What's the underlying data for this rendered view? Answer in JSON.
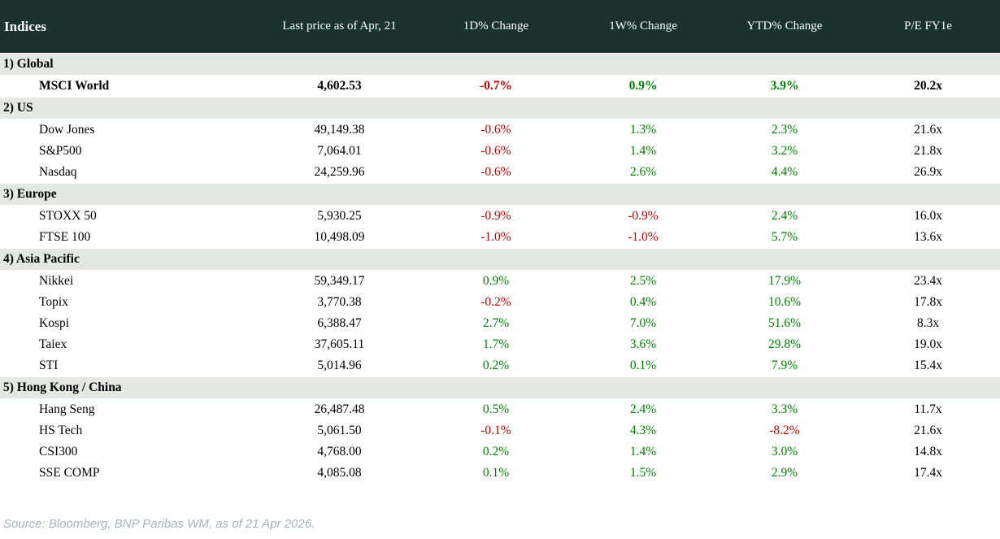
{
  "table": {
    "columns": [
      "Indices",
      "Last price as of Apr, 21",
      "1D% Change",
      "1W% Change",
      "YTD% Change",
      "P/E FY1e"
    ],
    "sections": [
      {
        "label": "1) Global",
        "rows": [
          {
            "name": "MSCI World",
            "bold": true,
            "price": "4,602.53",
            "d1": "-0.7%",
            "w1": "0.9%",
            "ytd": "3.9%",
            "pe": "20.2x"
          }
        ]
      },
      {
        "label": "2) US",
        "rows": [
          {
            "name": "Dow Jones",
            "price": "49,149.38",
            "d1": "-0.6%",
            "w1": "1.3%",
            "ytd": "2.3%",
            "pe": "21.6x"
          },
          {
            "name": "S&P500",
            "price": "7,064.01",
            "d1": "-0.6%",
            "w1": "1.4%",
            "ytd": "3.2%",
            "pe": "21.8x"
          },
          {
            "name": "Nasdaq",
            "price": "24,259.96",
            "d1": "-0.6%",
            "w1": "2.6%",
            "ytd": "4.4%",
            "pe": "26.9x"
          }
        ]
      },
      {
        "label": "3) Europe",
        "rows": [
          {
            "name": "STOXX 50",
            "price": "5,930.25",
            "d1": "-0.9%",
            "w1": "-0.9%",
            "ytd": "2.4%",
            "pe": "16.0x"
          },
          {
            "name": "FTSE 100",
            "price": "10,498.09",
            "d1": "-1.0%",
            "w1": "-1.0%",
            "ytd": "5.7%",
            "pe": "13.6x"
          }
        ]
      },
      {
        "label": "4) Asia Pacific",
        "rows": [
          {
            "name": "Nikkei",
            "price": "59,349.17",
            "d1": "0.9%",
            "w1": "2.5%",
            "ytd": "17.9%",
            "pe": "23.4x"
          },
          {
            "name": "Topix",
            "price": "3,770.38",
            "d1": "-0.2%",
            "w1": "0.4%",
            "ytd": "10.6%",
            "pe": "17.8x"
          },
          {
            "name": "Kospi",
            "price": "6,388.47",
            "d1": "2.7%",
            "w1": "7.0%",
            "ytd": "51.6%",
            "pe": "8.3x"
          },
          {
            "name": "Taiex",
            "price": "37,605.11",
            "d1": "1.7%",
            "w1": "3.6%",
            "ytd": "29.8%",
            "pe": "19.0x"
          },
          {
            "name": "STI",
            "price": "5,014.96",
            "d1": "0.2%",
            "w1": "0.1%",
            "ytd": "7.9%",
            "pe": "15.4x"
          }
        ]
      },
      {
        "label": "5) Hong Kong / China",
        "rows": [
          {
            "name": "Hang Seng",
            "price": "26,487.48",
            "d1": "0.5%",
            "w1": "2.4%",
            "ytd": "3.3%",
            "pe": "11.7x"
          },
          {
            "name": "HS Tech",
            "price": "5,061.50",
            "d1": "-0.1%",
            "w1": "4.3%",
            "ytd": "-8.2%",
            "pe": "21.6x"
          },
          {
            "name": "CSI300",
            "price": "4,768.00",
            "d1": "0.2%",
            "w1": "1.4%",
            "ytd": "3.0%",
            "pe": "14.8x"
          },
          {
            "name": "SSE COMP",
            "price": "4,085.08",
            "d1": "0.1%",
            "w1": "1.5%",
            "ytd": "2.9%",
            "pe": "17.4x"
          }
        ]
      }
    ]
  },
  "footer": {
    "source": "Source: Bloomberg, BNP Paribas WM, as of 21 Apr 2026."
  },
  "colors": {
    "header_bg": "#1b332e",
    "section_row_bg": "#e3e8e4",
    "positive": "#008000",
    "negative": "#c00000",
    "source_text": "#a4b2ba"
  },
  "chart_data": {
    "type": "table",
    "title": "Indices",
    "columns": [
      "Indices",
      "Last price as of Apr, 21",
      "1D% Change",
      "1W% Change",
      "YTD% Change",
      "P/E FY1e"
    ],
    "rows": [
      [
        "1) Global",
        "",
        "",
        "",
        "",
        ""
      ],
      [
        "MSCI World",
        4602.53,
        -0.7,
        0.9,
        3.9,
        20.2
      ],
      [
        "2) US",
        "",
        "",
        "",
        "",
        ""
      ],
      [
        "Dow Jones",
        49149.38,
        -0.6,
        1.3,
        2.3,
        21.6
      ],
      [
        "S&P500",
        7064.01,
        -0.6,
        1.4,
        3.2,
        21.8
      ],
      [
        "Nasdaq",
        24259.96,
        -0.6,
        2.6,
        4.4,
        26.9
      ],
      [
        "3) Europe",
        "",
        "",
        "",
        "",
        ""
      ],
      [
        "STOXX 50",
        5930.25,
        -0.9,
        -0.9,
        2.4,
        16.0
      ],
      [
        "FTSE 100",
        10498.09,
        -1.0,
        -1.0,
        5.7,
        13.6
      ],
      [
        "4) Asia Pacific",
        "",
        "",
        "",
        "",
        ""
      ],
      [
        "Nikkei",
        59349.17,
        0.9,
        2.5,
        17.9,
        23.4
      ],
      [
        "Topix",
        3770.38,
        -0.2,
        0.4,
        10.6,
        17.8
      ],
      [
        "Kospi",
        6388.47,
        2.7,
        7.0,
        51.6,
        8.3
      ],
      [
        "Taiex",
        37605.11,
        1.7,
        3.6,
        29.8,
        19.0
      ],
      [
        "STI",
        5014.96,
        0.2,
        0.1,
        7.9,
        15.4
      ],
      [
        "5) Hong Kong / China",
        "",
        "",
        "",
        "",
        ""
      ],
      [
        "Hang Seng",
        26487.48,
        0.5,
        2.4,
        3.3,
        11.7
      ],
      [
        "HS Tech",
        5061.5,
        -0.1,
        4.3,
        -8.2,
        21.6
      ],
      [
        "CSI300",
        4768.0,
        0.2,
        1.4,
        3.0,
        14.8
      ],
      [
        "SSE COMP",
        4085.08,
        0.1,
        1.5,
        2.9,
        17.4
      ]
    ]
  }
}
